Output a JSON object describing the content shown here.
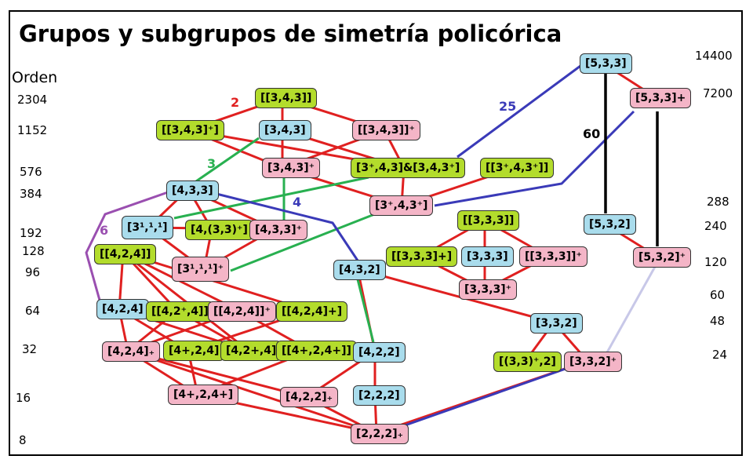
{
  "title": "Grupos y subgrupos de simetría policórica",
  "order_heading": "Orden",
  "orders_left": [
    "2304",
    "1152",
    "576",
    "384",
    "192",
    "128",
    "96",
    "64",
    "32",
    "16",
    "8"
  ],
  "orders_right": [
    "14400",
    "7200",
    "288",
    "240",
    "120",
    "60",
    "48",
    "24"
  ],
  "colors": {
    "blue": "#a9dcec",
    "pink": "#f4b5c7",
    "green": "#b3dc2c",
    "red_edge": "#e02020",
    "green_edge": "#28b050",
    "blue_edge": "#3a3ab8",
    "purple_edge": "#9a4fb0",
    "lavender_edge": "#c8c8e8"
  },
  "nodes": [
    {
      "id": "n533",
      "label": "[5,3,3]",
      "color": "blue"
    },
    {
      "id": "n533p",
      "label": "[5,3,3]+",
      "color": "pink"
    },
    {
      "id": "n532",
      "label": "[5,3,2]",
      "color": "blue"
    },
    {
      "id": "n532p",
      "label": "[5,3,2]⁺",
      "color": "pink"
    },
    {
      "id": "dd343",
      "label": "[[3,4,3]]",
      "color": "green"
    },
    {
      "id": "dd343p",
      "label": "[[3,4,3]⁺]",
      "color": "green"
    },
    {
      "id": "n343",
      "label": "[3,4,3]",
      "color": "blue"
    },
    {
      "id": "dd343pp",
      "label": "[[3,4,3]]⁺",
      "color": "pink"
    },
    {
      "id": "n343p",
      "label": "[3,4,3]⁺",
      "color": "pink"
    },
    {
      "id": "c343",
      "label": "[3⁺,4,3]&[3,4,3⁺]",
      "color": "green"
    },
    {
      "id": "dd3p43p",
      "label": "[[3⁺,4,3⁺]]",
      "color": "green"
    },
    {
      "id": "n3p43p",
      "label": "[3⁺,4,3⁺]",
      "color": "pink"
    },
    {
      "id": "n433",
      "label": "[4,3,3]",
      "color": "blue"
    },
    {
      "id": "n3111",
      "label": "[3¹,¹,¹]",
      "color": "blue"
    },
    {
      "id": "n4_33p",
      "label": "[4,(3,3)⁺]",
      "color": "green"
    },
    {
      "id": "n433p",
      "label": "[4,3,3]⁺",
      "color": "pink"
    },
    {
      "id": "n3111p",
      "label": "[3¹,¹,¹]⁺",
      "color": "pink"
    },
    {
      "id": "dd424",
      "label": "[[4,2,4]]",
      "color": "green"
    },
    {
      "id": "dd333",
      "label": "[[3,3,3]]",
      "color": "green"
    },
    {
      "id": "dd333p",
      "label": "[[3,3,3]+]",
      "color": "green"
    },
    {
      "id": "n333",
      "label": "[3,3,3]",
      "color": "blue"
    },
    {
      "id": "dd333pp",
      "label": "[[3,3,3]]⁺",
      "color": "pink"
    },
    {
      "id": "n333p",
      "label": "[3,3,3]⁺",
      "color": "pink"
    },
    {
      "id": "n432",
      "label": "[4,3,2]",
      "color": "blue"
    },
    {
      "id": "n424",
      "label": "[4,2,4]",
      "color": "blue"
    },
    {
      "id": "dd42p4",
      "label": "[[4,2⁺,4]]",
      "color": "green"
    },
    {
      "id": "dd424pp",
      "label": "[[4,2,4]]⁺",
      "color": "pink"
    },
    {
      "id": "dd424p",
      "label": "[[4,2,4]+]",
      "color": "green"
    },
    {
      "id": "n332",
      "label": "[3,3,2]",
      "color": "blue"
    },
    {
      "id": "n424p",
      "label": "[4,2,4]₊",
      "color": "pink"
    },
    {
      "id": "n4p24",
      "label": "[4+,2,4]",
      "color": "green"
    },
    {
      "id": "n42p4",
      "label": "[4,2+,4]",
      "color": "green"
    },
    {
      "id": "d4p24p",
      "label": "[[4+,2,4+]]",
      "color": "green"
    },
    {
      "id": "n422",
      "label": "[4,2,2]",
      "color": "blue"
    },
    {
      "id": "n33p2",
      "label": "[(3,3)⁺,2]",
      "color": "green"
    },
    {
      "id": "n332p",
      "label": "[3,3,2]⁺",
      "color": "pink"
    },
    {
      "id": "n4p24p",
      "label": "[4+,2,4+]",
      "color": "pink"
    },
    {
      "id": "n422p",
      "label": "[4,2,2]₊",
      "color": "pink"
    },
    {
      "id": "n222",
      "label": "[2,2,2]",
      "color": "blue"
    },
    {
      "id": "n222p",
      "label": "[2,2,2]₊",
      "color": "pink"
    }
  ],
  "edge_labels": [
    {
      "text": "2",
      "color": "red"
    },
    {
      "text": "3",
      "color": "green"
    },
    {
      "text": "4",
      "color": "blue"
    },
    {
      "text": "6",
      "color": "purple"
    },
    {
      "text": "25",
      "color": "blue"
    },
    {
      "text": "60",
      "color": "black"
    }
  ]
}
